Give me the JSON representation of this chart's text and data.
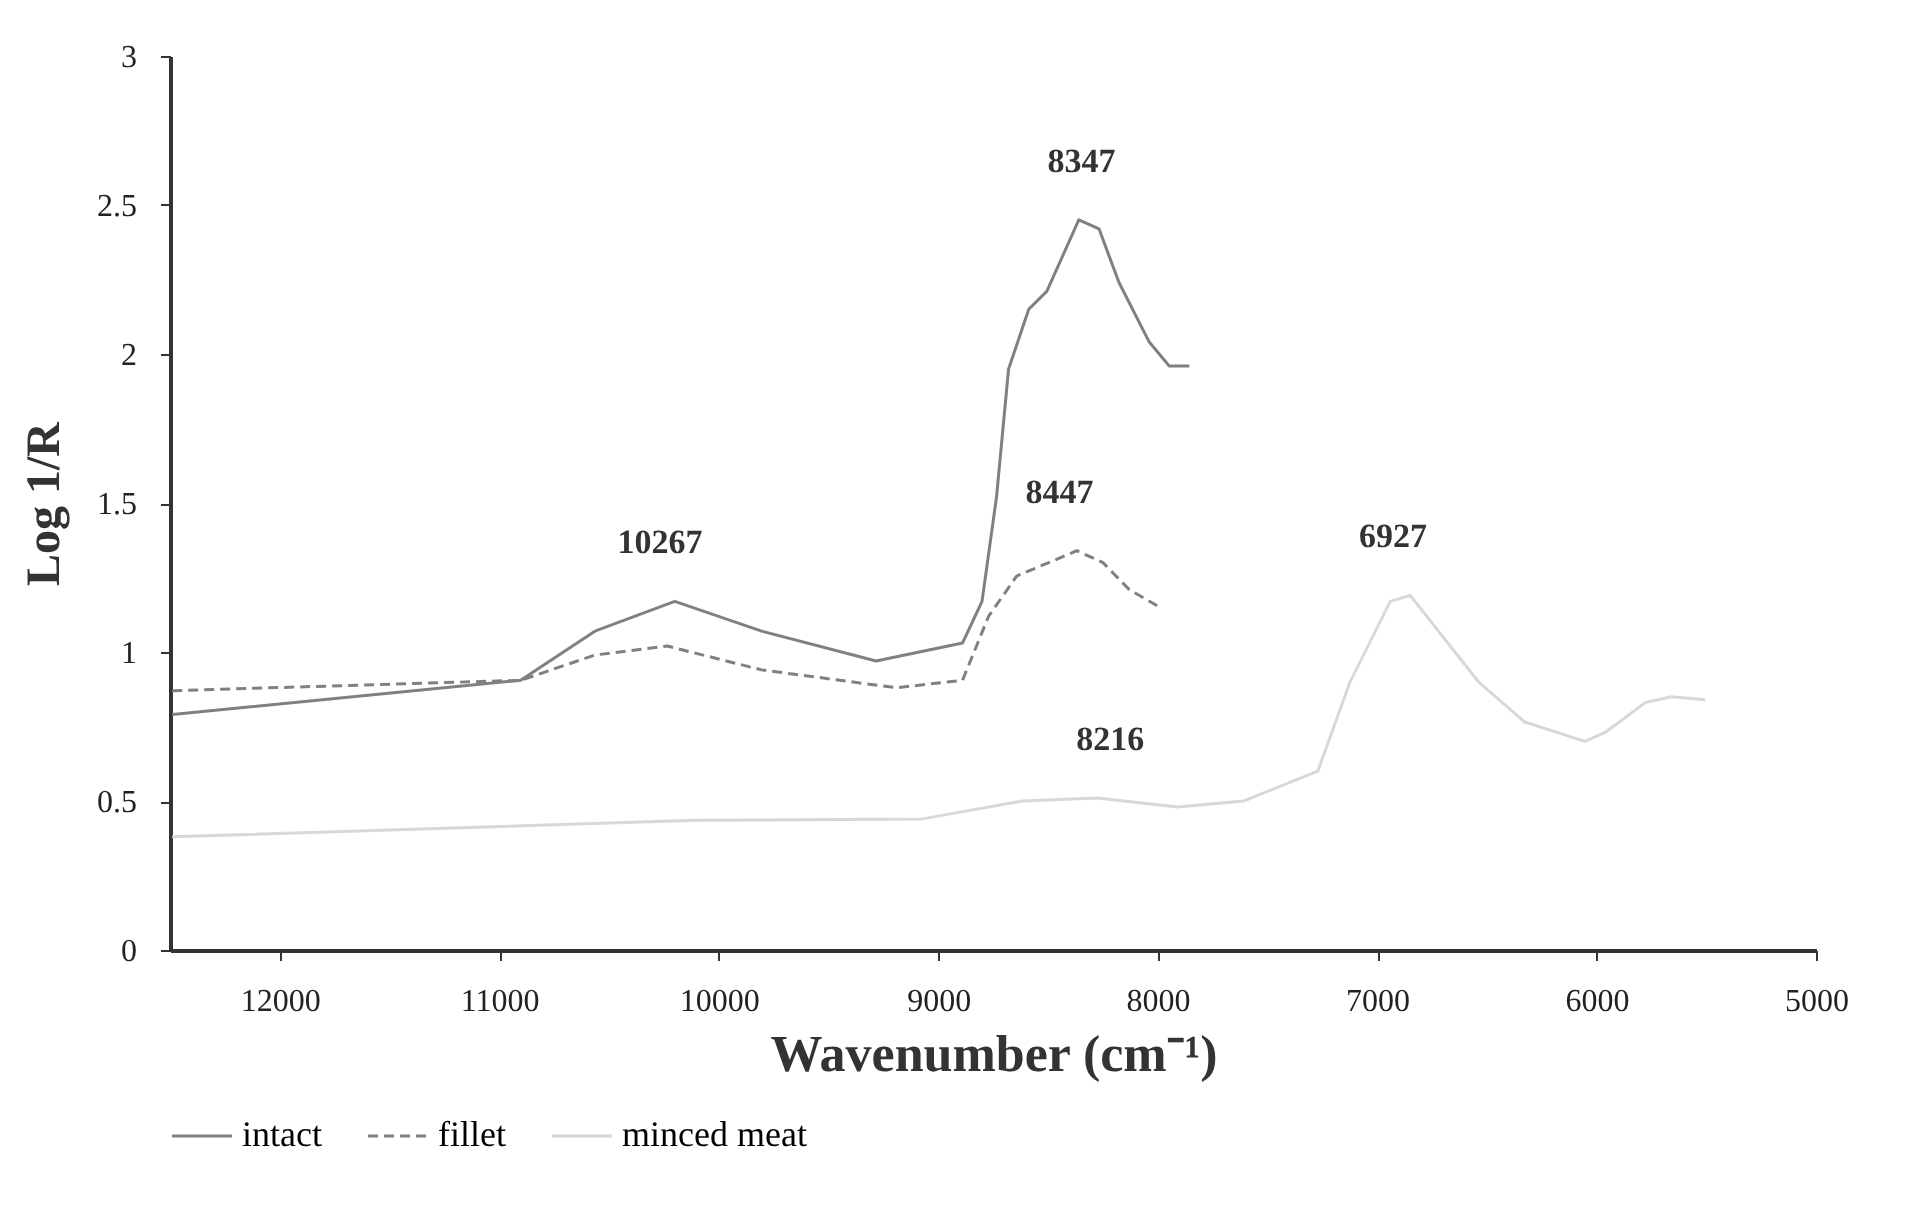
{
  "chart_data": {
    "type": "line",
    "xlabel": "Wavenumber  (cm⁻¹)",
    "ylabel": "Log 1/R",
    "xlim": [
      12500,
      5000
    ],
    "ylim": [
      0,
      3
    ],
    "xticks": [
      12000,
      11000,
      10000,
      9000,
      8000,
      7000,
      6000,
      5000
    ],
    "yticks": [
      0,
      0.5,
      1,
      1.5,
      2,
      2.5,
      3
    ],
    "grid": false,
    "legend": "bottom",
    "marker": "none",
    "series": [
      {
        "name": "intact",
        "color": "#808080",
        "line_style": "solid",
        "x": [
          12490,
          10902,
          10564,
          10200,
          9804,
          9283,
          8889,
          8800,
          8734,
          8679,
          8587,
          8505,
          8359,
          8267,
          8176,
          8038,
          7947,
          7855
        ],
        "values": [
          0.79,
          0.905,
          1.07,
          1.17,
          1.07,
          0.97,
          1.03,
          1.17,
          1.52,
          1.95,
          2.15,
          2.21,
          2.45,
          2.42,
          2.24,
          2.04,
          1.96,
          1.96
        ]
      },
      {
        "name": "fillet",
        "color": "#808080",
        "line_style": "dashed",
        "x": [
          12490,
          10902,
          10564,
          10234,
          9804,
          9191,
          8889,
          8770,
          8642,
          8496,
          8368,
          8249,
          8130,
          8002
        ],
        "values": [
          0.87,
          0.905,
          0.99,
          1.02,
          0.94,
          0.88,
          0.905,
          1.12,
          1.255,
          1.3,
          1.34,
          1.3,
          1.21,
          1.155
        ]
      },
      {
        "name": "minced meat",
        "color": "#d8d8d8",
        "line_style": "solid",
        "x": [
          12490,
          10106,
          9072,
          8615,
          8276,
          7910,
          7608,
          7270,
          7123,
          6940,
          6849,
          6538,
          6327,
          6053,
          5961,
          5778,
          5660,
          5504
        ],
        "values": [
          0.38,
          0.435,
          0.44,
          0.5,
          0.51,
          0.48,
          0.5,
          0.6,
          0.9,
          1.17,
          1.19,
          0.9,
          0.765,
          0.7,
          0.73,
          0.83,
          0.85,
          0.84
        ]
      }
    ],
    "annotations": [
      {
        "text": "10267",
        "x": 10267,
        "y": 1.17
      },
      {
        "text": "8347",
        "x": 8347,
        "y": 2.45
      },
      {
        "text": "8447",
        "x": 8447,
        "y": 1.34
      },
      {
        "text": "8216",
        "x": 8216,
        "y": 0.51
      },
      {
        "text": "6927",
        "x": 6927,
        "y": 1.19
      }
    ]
  }
}
